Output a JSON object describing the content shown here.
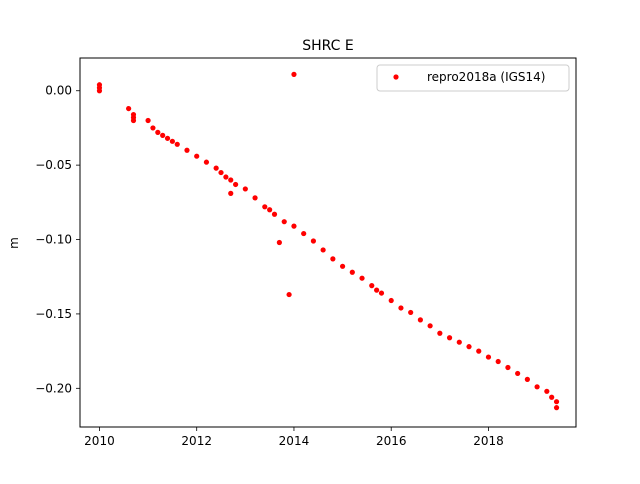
{
  "chart_data": {
    "type": "scatter",
    "title": "SHRC E",
    "xlabel": "",
    "ylabel": "m",
    "xlim": [
      2009.6,
      2019.8
    ],
    "ylim": [
      -0.226,
      0.022
    ],
    "xticks": [
      2010,
      2012,
      2014,
      2016,
      2018
    ],
    "yticks": [
      0.0,
      -0.05,
      -0.1,
      -0.15,
      -0.2
    ],
    "xtick_labels": [
      "2010",
      "2012",
      "2014",
      "2016",
      "2018"
    ],
    "ytick_labels": [
      "0.00",
      "−0.05",
      "−0.10",
      "−0.15",
      "−0.20"
    ],
    "grid": false,
    "legend_position": "upper right",
    "marker_color": "#ff0000",
    "series": [
      {
        "name": "repro2018a (IGS14)",
        "color": "#ff0000",
        "x": [
          2010.0,
          2010.0,
          2010.0,
          2010.6,
          2010.7,
          2010.7,
          2010.7,
          2011.0,
          2011.1,
          2011.2,
          2011.3,
          2011.4,
          2011.5,
          2011.6,
          2011.8,
          2012.0,
          2012.2,
          2012.4,
          2012.5,
          2012.6,
          2012.7,
          2012.8,
          2013.0,
          2013.2,
          2013.4,
          2013.5,
          2013.6,
          2013.8,
          2014.0,
          2014.2,
          2014.4,
          2014.6,
          2014.8,
          2015.0,
          2015.2,
          2015.4,
          2015.6,
          2015.7,
          2015.8,
          2016.0,
          2016.2,
          2016.4,
          2016.6,
          2016.8,
          2017.0,
          2017.2,
          2017.4,
          2017.6,
          2017.8,
          2018.0,
          2018.2,
          2018.4,
          2018.6,
          2018.8,
          2019.0,
          2019.2,
          2019.3,
          2019.4,
          2019.4,
          2014.0,
          2013.9,
          2013.7,
          2012.7
        ],
        "y": [
          0.004,
          0.002,
          0.0,
          -0.012,
          -0.016,
          -0.02,
          -0.018,
          -0.02,
          -0.025,
          -0.028,
          -0.03,
          -0.032,
          -0.034,
          -0.036,
          -0.04,
          -0.044,
          -0.048,
          -0.052,
          -0.055,
          -0.058,
          -0.06,
          -0.063,
          -0.066,
          -0.072,
          -0.078,
          -0.08,
          -0.083,
          -0.088,
          -0.091,
          -0.096,
          -0.101,
          -0.107,
          -0.113,
          -0.118,
          -0.122,
          -0.126,
          -0.131,
          -0.134,
          -0.136,
          -0.141,
          -0.146,
          -0.149,
          -0.154,
          -0.158,
          -0.163,
          -0.166,
          -0.169,
          -0.172,
          -0.175,
          -0.179,
          -0.182,
          -0.186,
          -0.19,
          -0.194,
          -0.199,
          -0.202,
          -0.206,
          -0.209,
          -0.213,
          0.011,
          -0.137,
          -0.102,
          -0.069
        ]
      }
    ]
  }
}
